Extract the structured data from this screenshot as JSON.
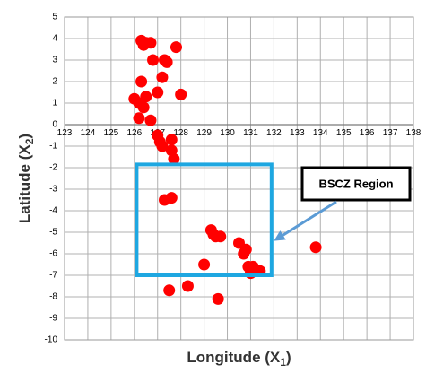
{
  "chart_data": {
    "type": "scatter",
    "title": "",
    "xlabel": "Longitude (X",
    "xlabel_sub": "1",
    "xlabel_suffix": ")",
    "ylabel": "Latitude (X",
    "ylabel_sub": "2",
    "ylabel_suffix": ")",
    "xlim": [
      123,
      138
    ],
    "ylim": [
      -10,
      5
    ],
    "xticks": [
      123,
      124,
      125,
      126,
      127,
      128,
      129,
      130,
      131,
      132,
      133,
      134,
      135,
      136,
      137,
      138
    ],
    "yticks": [
      5,
      4,
      3,
      2,
      1,
      0,
      -1,
      -2,
      -3,
      -4,
      -5,
      -6,
      -7,
      -8,
      -9,
      -10
    ],
    "grid": true,
    "point_color": "#ff0000",
    "region_color": "#1ea7e1",
    "series": [
      {
        "points": [
          {
            "x": 126.3,
            "y": 3.9
          },
          {
            "x": 126.5,
            "y": 3.8
          },
          {
            "x": 126.7,
            "y": 3.8
          },
          {
            "x": 126.4,
            "y": 3.7
          },
          {
            "x": 127.8,
            "y": 3.6
          },
          {
            "x": 126.8,
            "y": 3.0
          },
          {
            "x": 127.3,
            "y": 3.0
          },
          {
            "x": 127.4,
            "y": 2.9
          },
          {
            "x": 126.3,
            "y": 2.0
          },
          {
            "x": 127.2,
            "y": 2.2
          },
          {
            "x": 127.0,
            "y": 1.5
          },
          {
            "x": 128.0,
            "y": 1.4
          },
          {
            "x": 126.0,
            "y": 1.2
          },
          {
            "x": 126.2,
            "y": 1.0
          },
          {
            "x": 126.5,
            "y": 1.3
          },
          {
            "x": 126.4,
            "y": 0.8
          },
          {
            "x": 126.2,
            "y": 0.3
          },
          {
            "x": 126.7,
            "y": 0.2
          },
          {
            "x": 127.0,
            "y": -0.5
          },
          {
            "x": 127.1,
            "y": -0.8
          },
          {
            "x": 127.6,
            "y": -0.7
          },
          {
            "x": 127.2,
            "y": -1.0
          },
          {
            "x": 127.6,
            "y": -1.2
          },
          {
            "x": 127.7,
            "y": -1.6
          },
          {
            "x": 127.3,
            "y": -3.5
          },
          {
            "x": 127.6,
            "y": -3.4
          },
          {
            "x": 129.3,
            "y": -4.9
          },
          {
            "x": 129.4,
            "y": -5.1
          },
          {
            "x": 129.5,
            "y": -5.2
          },
          {
            "x": 129.7,
            "y": -5.2
          },
          {
            "x": 130.5,
            "y": -5.5
          },
          {
            "x": 130.8,
            "y": -5.8
          },
          {
            "x": 130.7,
            "y": -6.0
          },
          {
            "x": 133.8,
            "y": -5.7
          },
          {
            "x": 129.0,
            "y": -6.5
          },
          {
            "x": 130.9,
            "y": -6.6
          },
          {
            "x": 131.1,
            "y": -6.6
          },
          {
            "x": 131.4,
            "y": -6.8
          },
          {
            "x": 131.0,
            "y": -6.9
          },
          {
            "x": 127.5,
            "y": -7.7
          },
          {
            "x": 128.3,
            "y": -7.5
          },
          {
            "x": 129.6,
            "y": -8.1
          }
        ]
      }
    ],
    "region": {
      "x0": 126.1,
      "x1": 131.9,
      "y0": -7.0,
      "y1": -1.85
    },
    "annotation": {
      "text": "BSCZ Region",
      "arrow_to": {
        "x": 132.0,
        "y": -5.4
      }
    }
  }
}
